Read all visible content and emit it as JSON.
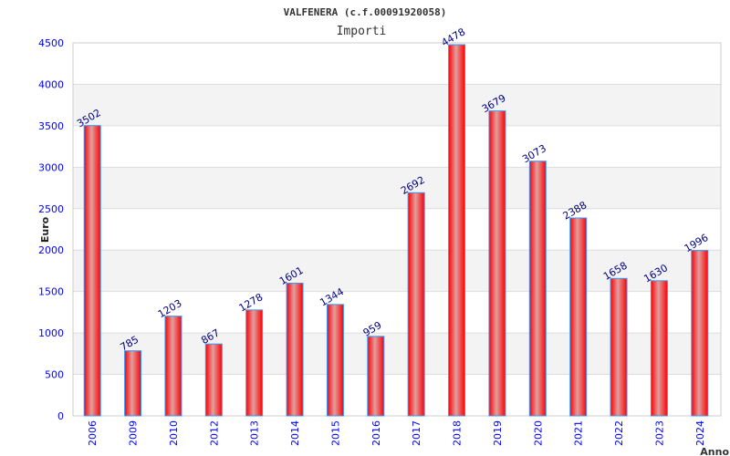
{
  "chart_data": {
    "type": "bar",
    "title": "VALFENERA (c.f.00091920058)",
    "subtitle": "Importi",
    "xlabel": "Anno",
    "ylabel": "Euro",
    "ylim": [
      0,
      4500
    ],
    "yticks": [
      0,
      500,
      1000,
      1500,
      2000,
      2500,
      3000,
      3500,
      4000,
      4500
    ],
    "categories": [
      "2006",
      "2009",
      "2010",
      "2012",
      "2013",
      "2014",
      "2015",
      "2016",
      "2017",
      "2018",
      "2019",
      "2020",
      "2021",
      "2022",
      "2023",
      "2024"
    ],
    "values": [
      3502,
      785,
      1203,
      867,
      1278,
      1601,
      1344,
      959,
      2692,
      4478,
      3679,
      3073,
      2388,
      1658,
      1630,
      1996
    ],
    "grid": true,
    "colors": {
      "bar": "#ff0000",
      "bar_edge": "#3399ff",
      "tick": "#0000ff",
      "label": "#000080",
      "band": "#f3f3f3"
    }
  }
}
